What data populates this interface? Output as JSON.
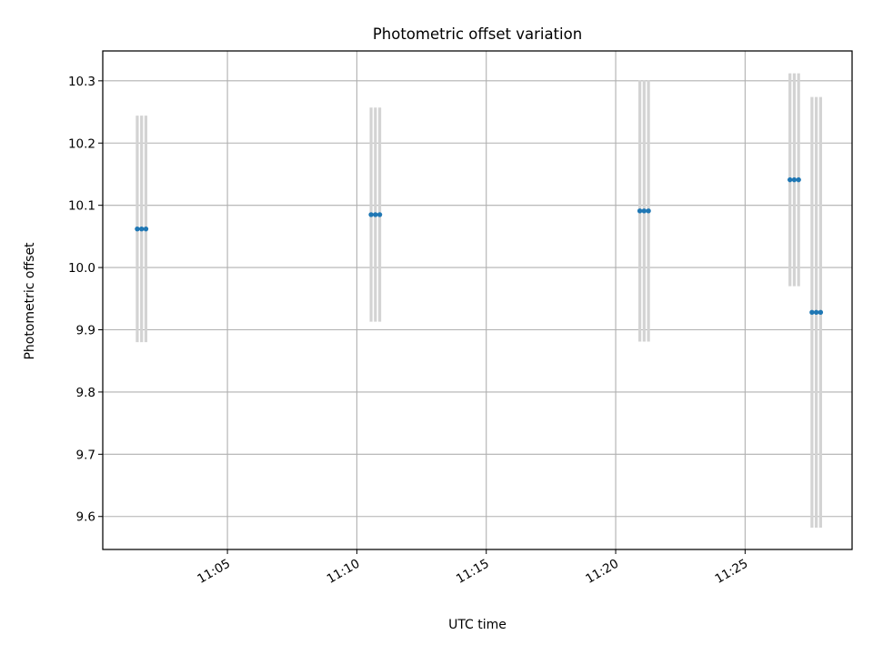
{
  "chart_data": {
    "type": "scatter",
    "title": "Photometric offset variation",
    "xlabel": "UTC time",
    "ylabel": "Photometric offset",
    "x_is_time": true,
    "xlim": [
      "11:00:11",
      "11:29:08"
    ],
    "ylim": [
      9.547,
      10.348
    ],
    "xticks": [
      "11:05",
      "11:10",
      "11:15",
      "11:20",
      "11:25"
    ],
    "yticks": [
      9.6,
      9.7,
      9.8,
      9.9,
      10.0,
      10.1,
      10.2,
      10.3
    ],
    "grid": true,
    "series": [
      {
        "marker_color": "#1f77b4",
        "errorbar_color": "#d3d3d3",
        "points": [
          {
            "time": "11:01:31",
            "y": 10.062,
            "err": 0.182
          },
          {
            "time": "11:01:41",
            "y": 10.062,
            "err": 0.182
          },
          {
            "time": "11:01:51",
            "y": 10.062,
            "err": 0.182
          },
          {
            "time": "11:10:33",
            "y": 10.085,
            "err": 0.172
          },
          {
            "time": "11:10:43",
            "y": 10.085,
            "err": 0.172
          },
          {
            "time": "11:10:53",
            "y": 10.085,
            "err": 0.172
          },
          {
            "time": "11:20:56",
            "y": 10.091,
            "err": 0.21
          },
          {
            "time": "11:21:06",
            "y": 10.091,
            "err": 0.21
          },
          {
            "time": "11:21:16",
            "y": 10.091,
            "err": 0.21
          },
          {
            "time": "11:26:44",
            "y": 10.141,
            "err": 0.171
          },
          {
            "time": "11:26:54",
            "y": 10.141,
            "err": 0.171
          },
          {
            "time": "11:27:04",
            "y": 10.141,
            "err": 0.171
          },
          {
            "time": "11:27:35",
            "y": 9.928,
            "err": 0.346
          },
          {
            "time": "11:27:45",
            "y": 9.928,
            "err": 0.346
          },
          {
            "time": "11:27:55",
            "y": 9.928,
            "err": 0.346
          }
        ]
      }
    ]
  }
}
